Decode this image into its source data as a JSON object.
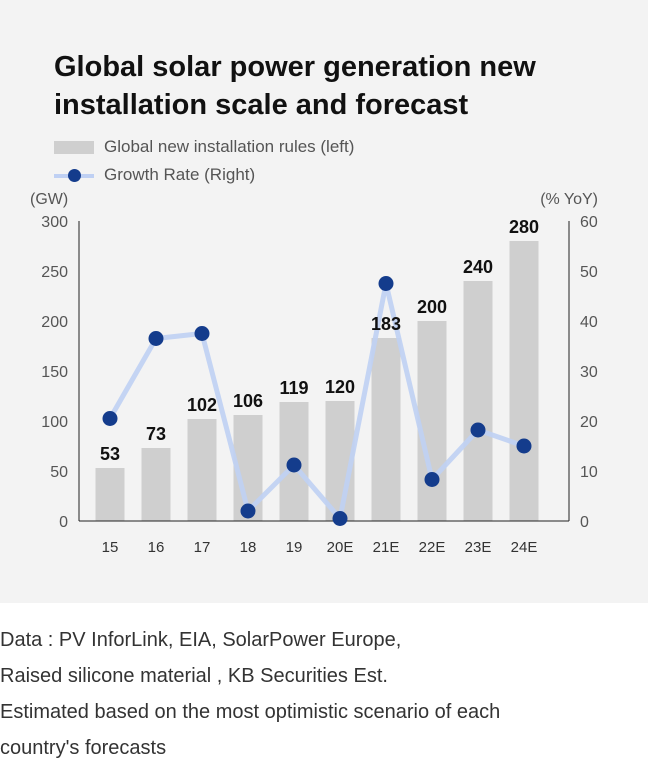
{
  "title_line1": "Global solar power generation new",
  "title_line2": "installation scale and forecast",
  "legend": {
    "bar_label": "Global new installation rules (left)",
    "line_label": "Growth Rate (Right)"
  },
  "footer": {
    "line1": "Data :  PV InforLink, EIA,   SolarPower Europe,",
    "line2": "Raised silicone material , KB Securities Est.",
    "line3": "Estimated based on the most optimistic scenario of each",
    "line4": "country's forecasts"
  },
  "colors": {
    "background": "#f3f3f3",
    "bar": "#cfcfcf",
    "line": "#bfd0f3",
    "marker": "#143c8c"
  },
  "chart_data": {
    "type": "bar",
    "categories": [
      "15",
      "16",
      "17",
      "18",
      "19",
      "20E",
      "21E",
      "22E",
      "23E",
      "24E"
    ],
    "series": [
      {
        "name": "Global new installation rules (left)",
        "type": "bar",
        "axis": "left",
        "values": [
          53,
          73,
          102,
          106,
          119,
          120,
          183,
          200,
          240,
          280
        ]
      },
      {
        "name": "Growth Rate (Right)",
        "type": "line",
        "axis": "right",
        "values": [
          20.5,
          36.5,
          37.5,
          2,
          11.2,
          0.5,
          47.5,
          8.3,
          18.2,
          15
        ]
      }
    ],
    "ylabel": "(GW)",
    "ylabel_right": "(% YoY)",
    "ylim": [
      0,
      300
    ],
    "ylim_right": [
      0,
      60
    ],
    "yticks": [
      "0",
      "50",
      "100",
      "150",
      "200",
      "250",
      "300"
    ],
    "yticks_right": [
      "0",
      "10",
      "20",
      "30",
      "40",
      "50",
      "60"
    ],
    "data_labels": [
      "53",
      "73",
      "102",
      "106",
      "119",
      "120",
      "183",
      "200",
      "240",
      "280"
    ],
    "grid": false,
    "legend_position": "top-left"
  }
}
